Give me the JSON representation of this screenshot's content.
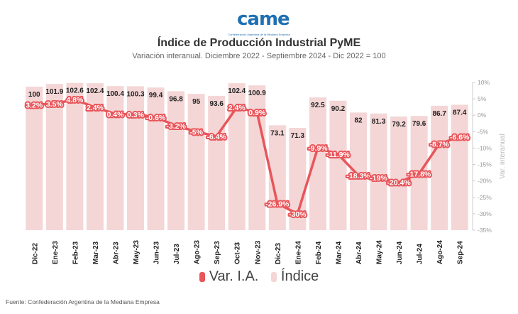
{
  "header": {
    "logo_text": "came",
    "logo_subtitle": "Confederación Argentina de la Mediana Empresa",
    "title": "Índice de Producción Industrial PyME",
    "subtitle": "Variación interanual. Diciembre 2022 - Septiembre 2024 - Dic 2022 = 100"
  },
  "footer": {
    "source": "Fuente: Confederación Argentina de la Mediana Empresa"
  },
  "legend": {
    "line_label": "Var. I.A.",
    "bar_label": "Índice"
  },
  "colors": {
    "bar": "#f4d6d6",
    "line": "#e8555a",
    "text": "#222222",
    "axis": "#999999"
  },
  "chart_data": {
    "type": "bar",
    "title": "Índice de Producción Industrial PyME",
    "subtitle": "Variación interanual. Diciembre 2022 - Septiembre 2024 - Dic 2022 = 100",
    "categories": [
      "Dic-22",
      "Ene-23",
      "Feb-23",
      "Mar-23",
      "Abr-23",
      "May-23",
      "Jun-23",
      "Jul-23",
      "Ago-23",
      "Sep-23",
      "Oct-23",
      "Nov-23",
      "Dic-23",
      "Ene-24",
      "Feb-24",
      "Mar-24",
      "Abr-24",
      "May-24",
      "Jun-24",
      "Jul-24",
      "Ago-24",
      "Sep-24"
    ],
    "series": [
      {
        "name": "Índice",
        "type": "bar",
        "values": [
          100,
          101.9,
          102.6,
          102.4,
          100.4,
          100.3,
          99.4,
          96.8,
          95,
          93.6,
          102.4,
          100.9,
          73.1,
          71.3,
          92.5,
          90.2,
          82,
          81.3,
          79.2,
          79.6,
          86.7,
          87.4
        ],
        "labels": [
          "100",
          "101.9",
          "102.6",
          "102.4",
          "100.4",
          "100.3",
          "99.4",
          "96.8",
          "95",
          "93.6",
          "102.4",
          "100.9",
          "73.1",
          "71.3",
          "92.5",
          "90.2",
          "82",
          "81.3",
          "79.2",
          "79.6",
          "86.7",
          "87.4"
        ]
      },
      {
        "name": "Var. I.A.",
        "type": "line",
        "axis": "right",
        "values": [
          3.2,
          3.5,
          4.8,
          2.4,
          0.4,
          0.3,
          -0.6,
          -3.2,
          -5,
          -6.4,
          2.4,
          0.9,
          -26.9,
          -30,
          -9.9,
          -11.9,
          -18.3,
          -19,
          -20.4,
          -17.8,
          -8.7,
          -6.6
        ],
        "labels": [
          "3.2%",
          "3.5%",
          "4.8%",
          "2.4%",
          "0.4%",
          "0.3%",
          "-0.6%",
          "-3.2%",
          "-5%",
          "-6.4%",
          "2.4%",
          "0.9%",
          "-26.9%",
          "-30%",
          "-9.9%",
          "-11.9%",
          "-18.3%",
          "-19%",
          "-20.4%",
          "-17.8%",
          "-8.7%",
          "-6.6%"
        ]
      }
    ],
    "y2label": "Var. interanual",
    "y2lim": [
      -35,
      10
    ],
    "y2ticks": [
      "10%",
      "5%",
      "0%",
      "-5%",
      "-10%",
      "-15%",
      "-20%",
      "-25%",
      "-30%",
      "-35%"
    ],
    "legend_position": "bottom"
  }
}
